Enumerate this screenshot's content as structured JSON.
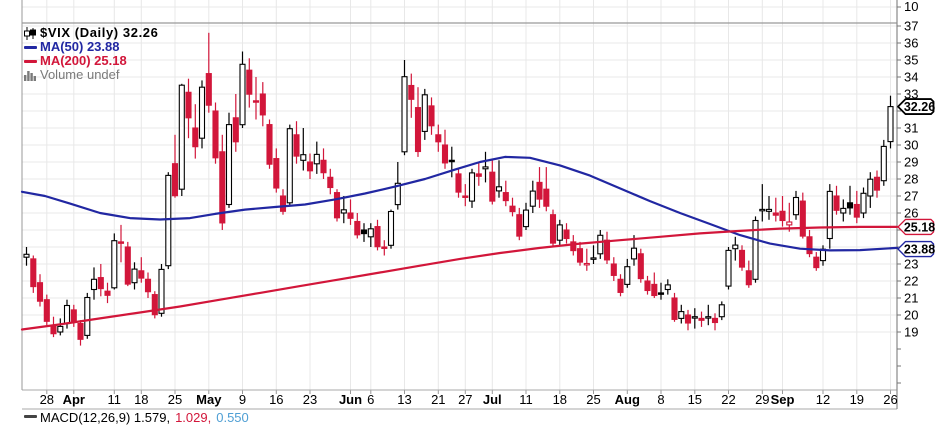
{
  "legend": {
    "symbol_title": "$VIX (Daily) 32.26",
    "ma50_label": "MA(50) 23.88",
    "ma200_label": "MA(200) 25.18",
    "volume_label": "Volume undef"
  },
  "colors": {
    "ma50": "#2127a2",
    "ma200": "#d2163a",
    "candle_red": "#d2163a",
    "candle_black": "#000000",
    "grid": "#e8e8e8",
    "separator": "#999999",
    "axis_line": "#888888",
    "tick": "#777777",
    "text": "#000000",
    "volume_text": "#7a7a7a",
    "macd_signal": "#d2163a",
    "macd_hist": "#4f9fd4"
  },
  "y_axis": {
    "upper_label": "10",
    "labels": [
      37,
      36,
      35,
      34,
      33,
      31,
      30,
      29,
      28,
      27,
      26,
      23,
      22,
      21,
      20,
      19
    ]
  },
  "x_axis": {
    "ticks": [
      {
        "label": "28",
        "i": 3,
        "bold": false
      },
      {
        "label": "Apr",
        "i": 7,
        "bold": true
      },
      {
        "label": "11",
        "i": 13,
        "bold": false
      },
      {
        "label": "18",
        "i": 17,
        "bold": false
      },
      {
        "label": "25",
        "i": 22,
        "bold": false
      },
      {
        "label": "May",
        "i": 27,
        "bold": true
      },
      {
        "label": "9",
        "i": 32,
        "bold": false
      },
      {
        "label": "16",
        "i": 37,
        "bold": false
      },
      {
        "label": "23",
        "i": 42,
        "bold": false
      },
      {
        "label": "Jun",
        "i": 48,
        "bold": true
      },
      {
        "label": "6",
        "i": 51,
        "bold": false
      },
      {
        "label": "13",
        "i": 56,
        "bold": false
      },
      {
        "label": "21",
        "i": 61,
        "bold": false
      },
      {
        "label": "27",
        "i": 65,
        "bold": false
      },
      {
        "label": "Jul",
        "i": 69,
        "bold": true
      },
      {
        "label": "11",
        "i": 74,
        "bold": false
      },
      {
        "label": "18",
        "i": 79,
        "bold": false
      },
      {
        "label": "25",
        "i": 84,
        "bold": false
      },
      {
        "label": "Aug",
        "i": 89,
        "bold": true
      },
      {
        "label": "8",
        "i": 94,
        "bold": false
      },
      {
        "label": "15",
        "i": 99,
        "bold": false
      },
      {
        "label": "22",
        "i": 104,
        "bold": false
      },
      {
        "label": "29",
        "i": 109,
        "bold": false
      },
      {
        "label": "Sep",
        "i": 112,
        "bold": true
      },
      {
        "label": "12",
        "i": 118,
        "bold": false
      },
      {
        "label": "19",
        "i": 123,
        "bold": false
      },
      {
        "label": "26",
        "i": 128,
        "bold": false
      }
    ]
  },
  "callouts": [
    {
      "text": "32.26",
      "price": 32.26,
      "style": "last"
    },
    {
      "text": "25.18",
      "price": 25.18,
      "style": "ma200"
    },
    {
      "text": "23.88",
      "price": 23.88,
      "style": "ma50"
    }
  ],
  "macd_footer": {
    "main": "MACD(12,26,9) 1.579,",
    "signal": "1.029,",
    "hist": "0.550"
  },
  "chart_data": {
    "type": "candlestick",
    "symbol": "$VIX",
    "timeframe": "Daily",
    "last_price": 32.26,
    "ma50_value": 23.88,
    "ma200_value": 25.18,
    "ylim": [
      16,
      38
    ],
    "grid_prices": [
      19,
      20,
      21,
      22,
      23,
      24,
      25,
      26,
      27,
      28,
      29,
      30,
      31,
      32,
      33,
      34,
      35,
      36,
      37
    ],
    "candles": [
      [
        "Mar 23",
        23.4,
        24.0,
        22.9,
        23.57
      ],
      [
        "Mar 24",
        23.3,
        23.5,
        21.3,
        21.67
      ],
      [
        "Mar 25",
        21.9,
        22.4,
        20.5,
        20.81
      ],
      [
        "Mar 28",
        20.9,
        21.2,
        19.4,
        19.63
      ],
      [
        "Mar 29",
        19.4,
        19.9,
        18.7,
        18.9
      ],
      [
        "Mar 30",
        19.0,
        19.8,
        18.8,
        19.33
      ],
      [
        "Mar 31",
        19.5,
        20.9,
        19.2,
        20.56
      ],
      [
        "Apr 1",
        20.3,
        20.6,
        19.3,
        19.63
      ],
      [
        "Apr 4",
        19.5,
        19.7,
        18.2,
        18.57
      ],
      [
        "Apr 5",
        18.8,
        21.3,
        18.6,
        21.03
      ],
      [
        "Apr 6",
        21.5,
        22.8,
        20.9,
        22.1
      ],
      [
        "Apr 7",
        22.2,
        23.0,
        21.1,
        21.55
      ],
      [
        "Apr 8",
        21.4,
        21.9,
        20.7,
        21.16
      ],
      [
        "Apr 11",
        21.6,
        24.8,
        21.5,
        24.37
      ],
      [
        "Apr 12",
        24.3,
        25.3,
        23.1,
        24.26
      ],
      [
        "Apr 13",
        24.0,
        24.3,
        21.7,
        21.82
      ],
      [
        "Apr 14",
        21.9,
        23.1,
        21.5,
        22.7
      ],
      [
        "Apr 18",
        22.6,
        23.4,
        21.9,
        22.17
      ],
      [
        "Apr 19",
        22.1,
        22.5,
        21.0,
        21.37
      ],
      [
        "Apr 20",
        21.2,
        21.4,
        19.8,
        20.02
      ],
      [
        "Apr 21",
        20.1,
        23.0,
        19.9,
        22.68
      ],
      [
        "Apr 22",
        22.9,
        28.4,
        22.7,
        28.21
      ],
      [
        "Apr 25",
        28.9,
        30.6,
        26.9,
        27.02
      ],
      [
        "Apr 26",
        27.4,
        33.6,
        27.0,
        33.52
      ],
      [
        "Apr 27",
        33.1,
        33.9,
        30.4,
        31.6
      ],
      [
        "Apr 28",
        31.0,
        32.4,
        29.2,
        29.9
      ],
      [
        "Apr 29",
        30.4,
        33.8,
        29.8,
        33.4
      ],
      [
        "May 2",
        34.2,
        36.6,
        31.9,
        32.34
      ],
      [
        "May 3",
        32.0,
        32.5,
        28.9,
        29.25
      ],
      [
        "May 4",
        29.6,
        30.6,
        25.0,
        25.42
      ],
      [
        "May 5",
        26.5,
        31.9,
        26.3,
        31.2
      ],
      [
        "May 6",
        31.6,
        33.0,
        29.6,
        30.19
      ],
      [
        "May 9",
        31.2,
        35.5,
        31.0,
        34.75
      ],
      [
        "May 10",
        34.4,
        35.1,
        32.2,
        32.99
      ],
      [
        "May 11",
        32.6,
        34.0,
        31.5,
        32.56
      ],
      [
        "May 12",
        33.0,
        33.7,
        31.1,
        31.77
      ],
      [
        "May 13",
        31.2,
        31.5,
        28.6,
        28.87
      ],
      [
        "May 16",
        29.2,
        29.8,
        27.2,
        27.47
      ],
      [
        "May 17",
        27.0,
        27.4,
        25.9,
        26.1
      ],
      [
        "May 18",
        26.6,
        31.2,
        26.4,
        30.96
      ],
      [
        "May 19",
        30.6,
        31.4,
        28.9,
        29.35
      ],
      [
        "May 20",
        29.1,
        31.0,
        28.5,
        29.43
      ],
      [
        "May 23",
        29.0,
        29.5,
        28.0,
        28.48
      ],
      [
        "May 24",
        28.9,
        30.2,
        28.3,
        29.45
      ],
      [
        "May 25",
        29.1,
        29.8,
        28.0,
        28.37
      ],
      [
        "May 26",
        28.1,
        28.6,
        27.1,
        27.5
      ],
      [
        "May 27",
        27.2,
        27.4,
        25.5,
        25.72
      ],
      [
        "May 31",
        26.0,
        27.0,
        25.4,
        26.19
      ],
      [
        "Jun 1",
        26.0,
        26.8,
        25.3,
        25.69
      ],
      [
        "Jun 2",
        25.5,
        26.0,
        24.5,
        24.72
      ],
      [
        "Jun 3",
        25.0,
        25.4,
        24.3,
        24.79
      ],
      [
        "Jun 6",
        24.6,
        25.4,
        24.0,
        25.07
      ],
      [
        "Jun 7",
        25.2,
        25.6,
        23.8,
        24.02
      ],
      [
        "Jun 8",
        24.0,
        24.4,
        23.5,
        23.96
      ],
      [
        "Jun 9",
        24.1,
        26.2,
        23.9,
        26.09
      ],
      [
        "Jun 10",
        26.5,
        29.0,
        26.2,
        27.75
      ],
      [
        "Jun 13",
        29.6,
        35.0,
        29.4,
        34.02
      ],
      [
        "Jun 14",
        33.5,
        34.2,
        31.6,
        32.69
      ],
      [
        "Jun 15",
        32.2,
        33.4,
        29.3,
        29.62
      ],
      [
        "Jun 16",
        30.8,
        33.3,
        30.3,
        32.95
      ],
      [
        "Jun 17",
        32.3,
        32.8,
        30.6,
        31.13
      ],
      [
        "Jun 21",
        30.6,
        31.2,
        29.6,
        30.19
      ],
      [
        "Jun 22",
        30.0,
        30.9,
        28.6,
        28.95
      ],
      [
        "Jun 23",
        29.1,
        29.9,
        28.1,
        29.05
      ],
      [
        "Jun 24",
        28.3,
        28.6,
        26.9,
        27.23
      ],
      [
        "Jun 27",
        27.0,
        27.7,
        26.4,
        26.95
      ],
      [
        "Jun 28",
        26.7,
        28.6,
        26.3,
        28.36
      ],
      [
        "Jun 29",
        28.3,
        29.0,
        27.6,
        28.16
      ],
      [
        "Jun 30",
        28.6,
        29.6,
        27.8,
        28.71
      ],
      [
        "Jul 1",
        28.4,
        29.2,
        26.5,
        26.7
      ],
      [
        "Jul 5",
        27.3,
        29.1,
        26.9,
        27.54
      ],
      [
        "Jul 6",
        27.2,
        27.9,
        26.4,
        26.73
      ],
      [
        "Jul 7",
        26.4,
        26.9,
        25.8,
        26.08
      ],
      [
        "Jul 8",
        25.9,
        26.3,
        24.4,
        24.64
      ],
      [
        "Jul 11",
        25.2,
        26.6,
        25.0,
        26.17
      ],
      [
        "Jul 12",
        26.4,
        27.9,
        26.0,
        27.29
      ],
      [
        "Jul 13",
        27.8,
        28.7,
        26.3,
        26.82
      ],
      [
        "Jul 14",
        27.4,
        28.7,
        26.1,
        26.4
      ],
      [
        "Jul 15",
        25.9,
        26.2,
        24.0,
        24.23
      ],
      [
        "Jul 18",
        24.4,
        25.6,
        24.1,
        25.3
      ],
      [
        "Jul 19",
        25.0,
        25.4,
        24.2,
        24.5
      ],
      [
        "Jul 20",
        24.3,
        24.7,
        23.5,
        23.79
      ],
      [
        "Jul 21",
        23.9,
        24.3,
        22.9,
        23.11
      ],
      [
        "Jul 22",
        23.0,
        23.9,
        22.6,
        23.03
      ],
      [
        "Jul 25",
        23.3,
        24.1,
        23.0,
        23.36
      ],
      [
        "Jul 26",
        23.6,
        25.0,
        23.3,
        24.69
      ],
      [
        "Jul 27",
        24.4,
        24.9,
        23.0,
        23.24
      ],
      [
        "Jul 28",
        23.0,
        23.4,
        22.0,
        22.33
      ],
      [
        "Jul 29",
        22.1,
        22.4,
        21.1,
        21.33
      ],
      [
        "Aug 1",
        21.8,
        23.3,
        21.6,
        22.84
      ],
      [
        "Aug 2",
        23.3,
        24.7,
        22.9,
        23.93
      ],
      [
        "Aug 3",
        23.6,
        23.9,
        21.9,
        22.14
      ],
      [
        "Aug 4",
        22.0,
        22.3,
        21.2,
        21.44
      ],
      [
        "Aug 5",
        21.8,
        22.5,
        21.0,
        21.15
      ],
      [
        "Aug 8",
        21.3,
        21.9,
        20.9,
        21.29
      ],
      [
        "Aug 9",
        21.5,
        22.1,
        21.2,
        21.77
      ],
      [
        "Aug 10",
        21.0,
        21.3,
        19.6,
        19.74
      ],
      [
        "Aug 11",
        19.8,
        20.6,
        19.5,
        20.2
      ],
      [
        "Aug 12",
        20.0,
        20.3,
        19.1,
        19.53
      ],
      [
        "Aug 15",
        19.9,
        20.4,
        19.2,
        19.9
      ],
      [
        "Aug 16",
        19.8,
        20.2,
        19.3,
        19.69
      ],
      [
        "Aug 17",
        19.9,
        20.6,
        19.4,
        19.9
      ],
      [
        "Aug 18",
        19.8,
        20.1,
        19.1,
        19.56
      ],
      [
        "Aug 19",
        19.9,
        20.8,
        19.7,
        20.6
      ],
      [
        "Aug 22",
        21.7,
        24.0,
        21.5,
        23.8
      ],
      [
        "Aug 23",
        23.9,
        24.6,
        23.2,
        24.11
      ],
      [
        "Aug 24",
        23.8,
        24.1,
        22.6,
        22.82
      ],
      [
        "Aug 25",
        22.6,
        23.2,
        21.6,
        21.78
      ],
      [
        "Aug 26",
        22.1,
        25.8,
        21.9,
        25.56
      ],
      [
        "Aug 29",
        26.2,
        27.7,
        25.5,
        26.21
      ],
      [
        "Aug 30",
        26.1,
        27.0,
        25.6,
        26.21
      ],
      [
        "Aug 31",
        26.0,
        26.9,
        25.5,
        25.87
      ],
      [
        "Sep 1",
        26.1,
        27.0,
        25.2,
        25.56
      ],
      [
        "Sep 2",
        25.3,
        26.6,
        24.9,
        25.47
      ],
      [
        "Sep 6",
        25.9,
        27.3,
        25.6,
        26.91
      ],
      [
        "Sep 7",
        26.7,
        27.2,
        24.5,
        24.64
      ],
      [
        "Sep 8",
        24.6,
        25.0,
        23.4,
        23.61
      ],
      [
        "Sep 9",
        23.4,
        23.7,
        22.6,
        22.79
      ],
      [
        "Sep 12",
        23.2,
        24.1,
        22.9,
        23.87
      ],
      [
        "Sep 13",
        24.5,
        27.7,
        23.9,
        27.27
      ],
      [
        "Sep 14",
        27.0,
        27.6,
        25.9,
        26.16
      ],
      [
        "Sep 15",
        26.0,
        26.8,
        25.5,
        26.27
      ],
      [
        "Sep 16",
        26.6,
        27.6,
        25.9,
        26.3
      ],
      [
        "Sep 19",
        26.5,
        27.3,
        25.4,
        25.76
      ],
      [
        "Sep 20",
        26.0,
        27.5,
        25.7,
        27.16
      ],
      [
        "Sep 21",
        27.0,
        28.4,
        26.3,
        27.99
      ],
      [
        "Sep 22",
        28.1,
        28.5,
        26.9,
        27.35
      ],
      [
        "Sep 23",
        27.9,
        30.3,
        27.6,
        29.92
      ],
      [
        "Sep 26",
        30.2,
        32.9,
        29.8,
        32.26
      ]
    ],
    "ma50_points": [
      [
        22,
        27.25
      ],
      [
        45,
        27.0
      ],
      [
        70,
        26.55
      ],
      [
        100,
        26.0
      ],
      [
        130,
        25.7
      ],
      [
        160,
        25.62
      ],
      [
        190,
        25.7
      ],
      [
        215,
        25.95
      ],
      [
        245,
        26.2
      ],
      [
        275,
        26.35
      ],
      [
        305,
        26.5
      ],
      [
        335,
        26.8
      ],
      [
        365,
        27.15
      ],
      [
        395,
        27.55
      ],
      [
        425,
        28.0
      ],
      [
        455,
        28.55
      ],
      [
        480,
        29.0
      ],
      [
        505,
        29.3
      ],
      [
        530,
        29.25
      ],
      [
        560,
        28.8
      ],
      [
        590,
        28.2
      ],
      [
        620,
        27.45
      ],
      [
        650,
        26.7
      ],
      [
        680,
        26.0
      ],
      [
        710,
        25.35
      ],
      [
        740,
        24.7
      ],
      [
        770,
        24.2
      ],
      [
        800,
        23.9
      ],
      [
        830,
        23.8
      ],
      [
        860,
        23.82
      ],
      [
        897,
        23.95
      ]
    ],
    "ma200_points": [
      [
        22,
        19.15
      ],
      [
        60,
        19.45
      ],
      [
        100,
        19.8
      ],
      [
        140,
        20.15
      ],
      [
        180,
        20.5
      ],
      [
        220,
        20.9
      ],
      [
        260,
        21.3
      ],
      [
        300,
        21.7
      ],
      [
        340,
        22.1
      ],
      [
        380,
        22.5
      ],
      [
        420,
        22.9
      ],
      [
        460,
        23.3
      ],
      [
        500,
        23.65
      ],
      [
        540,
        23.95
      ],
      [
        580,
        24.2
      ],
      [
        620,
        24.4
      ],
      [
        660,
        24.6
      ],
      [
        700,
        24.8
      ],
      [
        740,
        24.95
      ],
      [
        780,
        25.08
      ],
      [
        820,
        25.15
      ],
      [
        860,
        25.18
      ],
      [
        897,
        25.18
      ]
    ]
  }
}
